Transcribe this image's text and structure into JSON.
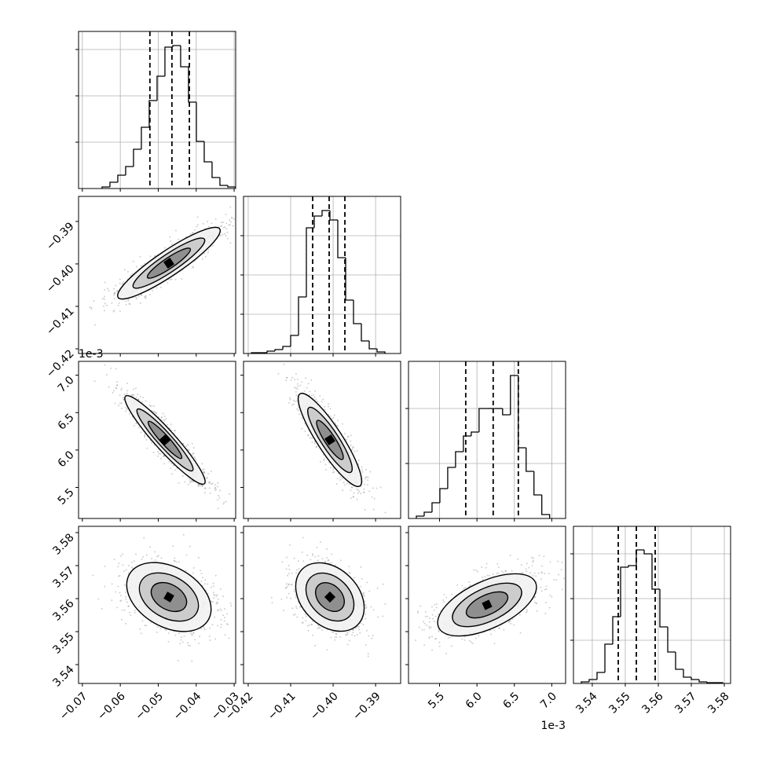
{
  "chart_data": {
    "type": "corner",
    "hist_color": "#000000",
    "grid": true,
    "parameters": [
      {
        "xlim": [
          -0.071,
          -0.0296
        ],
        "xticks": [
          {
            "value": -0.07,
            "label": "−0.07"
          },
          {
            "value": -0.06,
            "label": "−0.06"
          },
          {
            "value": -0.05,
            "label": "−0.05"
          },
          {
            "value": -0.04,
            "label": "−0.04"
          },
          {
            "value": -0.03,
            "label": "−0.03"
          }
        ],
        "bins": [
          -0.0648,
          -0.06273,
          -0.06066,
          -0.05859,
          -0.05652,
          -0.05445,
          -0.05238,
          -0.05031,
          -0.04824,
          -0.04617,
          -0.0441,
          -0.04203,
          -0.03996,
          -0.03789,
          -0.03582,
          -0.03375,
          -0.03168,
          -0.02961
        ],
        "counts": [
          2,
          8,
          17,
          28,
          50,
          78,
          112,
          143,
          180,
          182,
          155,
          110,
          60,
          34,
          14,
          4,
          2
        ],
        "ylim": [
          0,
          200
        ],
        "yticks": [
          59,
          118,
          177
        ],
        "quantiles": [
          -0.0522,
          -0.0464,
          -0.0418
        ]
      },
      {
        "xlim": [
          -0.4211,
          -0.3841
        ],
        "xticks": [
          {
            "value": -0.42,
            "label": "−0.42"
          },
          {
            "value": -0.41,
            "label": "−0.41"
          },
          {
            "value": -0.4,
            "label": "−0.40"
          },
          {
            "value": -0.39,
            "label": "−0.39"
          }
        ],
        "bins": [
          -0.41925,
          -0.4174,
          -0.41555,
          -0.4137,
          -0.41185,
          -0.41,
          -0.40815,
          -0.4063,
          -0.40445,
          -0.4026,
          -0.40075,
          -0.3989,
          -0.39705,
          -0.3952,
          -0.39335,
          -0.3915,
          -0.38965,
          -0.3878
        ],
        "counts": [
          1,
          1,
          3,
          5,
          9,
          23,
          72,
          160,
          175,
          182,
          170,
          122,
          68,
          38,
          16,
          6,
          2
        ],
        "ylim": [
          0,
          200
        ],
        "yticks": [
          50,
          100,
          150
        ],
        "quantiles": [
          -0.40482,
          -0.40093,
          -0.39723
        ]
      },
      {
        "xlim": [
          5.085,
          7.185
        ],
        "offset_label": "1e-3",
        "xticks": [
          5.5,
          {
            "value": 6.0,
            "label": "6.0"
          },
          6.5,
          {
            "value": 7.0,
            "label": "7.0"
          }
        ],
        "bins": [
          5.19,
          5.2948,
          5.3996,
          5.5044,
          5.6092,
          5.714,
          5.8188,
          5.9236,
          6.0284,
          6.1332,
          6.238,
          6.3428,
          6.4476,
          6.5524,
          6.6572,
          6.762,
          6.8668,
          6.9716
        ],
        "counts": [
          3,
          8,
          20,
          38,
          65,
          85,
          105,
          110,
          140,
          140,
          140,
          132,
          182,
          90,
          60,
          30,
          5
        ],
        "ylim": [
          0,
          200
        ],
        "yticks": [
          70,
          140
        ],
        "quantiles": [
          5.85,
          6.217,
          6.553
        ]
      },
      {
        "xlim": [
          3.5343,
          3.5819
        ],
        "xticks": [
          3.54,
          3.55,
          3.56,
          3.57,
          3.58
        ],
        "bins": [
          3.53668,
          3.53906,
          3.54144,
          3.54382,
          3.5462,
          3.54858,
          3.55096,
          3.55334,
          3.55572,
          3.5581,
          3.56048,
          3.56286,
          3.56524,
          3.56762,
          3.57,
          3.57238,
          3.57476,
          3.57714,
          3.57952
        ],
        "counts": [
          2,
          5,
          14,
          50,
          85,
          148,
          150,
          170,
          165,
          120,
          72,
          40,
          18,
          8,
          5,
          2,
          1,
          1
        ],
        "ylim": [
          0,
          200
        ],
        "yticks": [
          55,
          108,
          165
        ],
        "quantiles": [
          3.54787,
          3.55335,
          3.55906
        ]
      }
    ]
  }
}
